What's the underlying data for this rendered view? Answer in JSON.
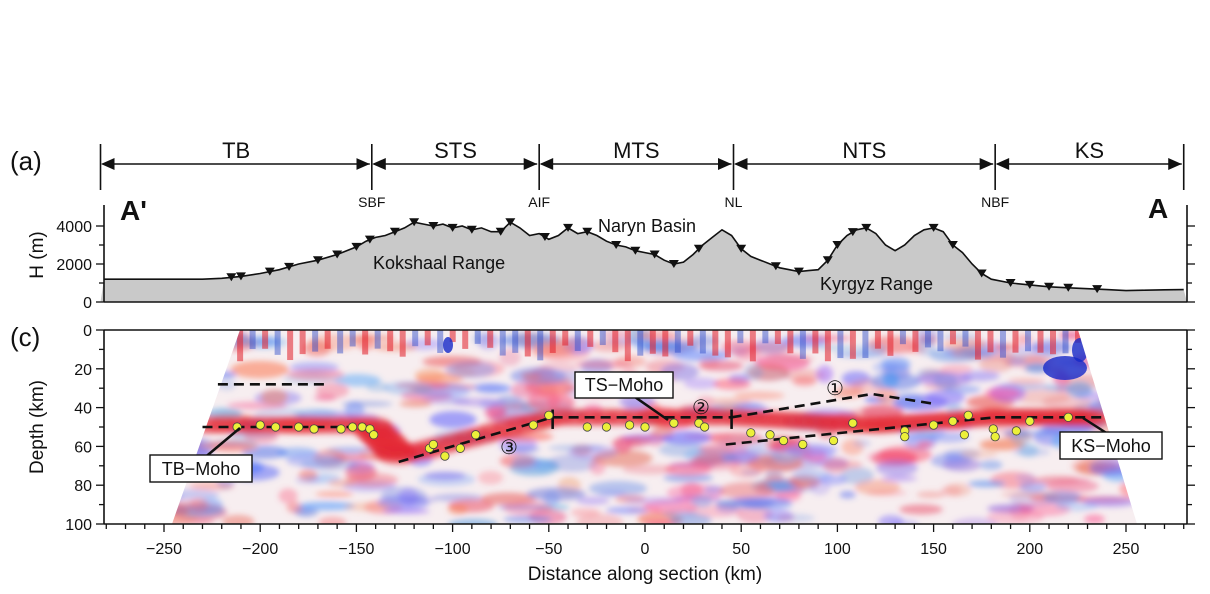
{
  "panel_a": {
    "label": "(a)",
    "section_start": "A'",
    "section_end": "A",
    "domains": [
      {
        "name": "TB",
        "from": -283,
        "to": -142
      },
      {
        "name": "STS",
        "from": -142,
        "to": -55
      },
      {
        "name": "MTS",
        "from": -55,
        "to": 46
      },
      {
        "name": "NTS",
        "from": 46,
        "to": 182
      },
      {
        "name": "KS",
        "from": 182,
        "to": 280
      }
    ],
    "faults": [
      {
        "name": "SBF",
        "x": -142
      },
      {
        "name": "AIF",
        "x": -55
      },
      {
        "name": "NL",
        "x": 46
      },
      {
        "name": "NBF",
        "x": 182
      }
    ],
    "y_axis_label": "H (m)",
    "y_ticks": [
      "0",
      "2000",
      "4000"
    ],
    "annotations": [
      {
        "text": "Kokshaal Range",
        "x": -130,
        "h": 1900
      },
      {
        "text": "Naryn Basin",
        "x": 0,
        "h": 3900
      },
      {
        "text": "Kyrgyz Range",
        "x": 140,
        "h": 900
      }
    ]
  },
  "panel_c": {
    "label": "(c)",
    "y_axis_label": "Depth (km)",
    "y_ticks": [
      "0",
      "20",
      "40",
      "60",
      "80",
      "100"
    ],
    "x_axis_label": "Distance along section (km)",
    "x_ticks": [
      "−250",
      "−200",
      "−150",
      "−100",
      "−50",
      "0",
      "50",
      "100",
      "150",
      "200",
      "250"
    ],
    "boxes": [
      "TB−Moho",
      "TS−Moho",
      "KS−Moho"
    ],
    "circled_numbers": [
      "①",
      "②",
      "③"
    ]
  },
  "chart_data": {
    "type": "line",
    "title": "",
    "xlabel": "Distance along section (km)",
    "xlim": [
      -283,
      280
    ],
    "topography": {
      "ylabel": "H (m)",
      "ylim": [
        0,
        5000
      ],
      "x": [
        -283,
        -240,
        -230,
        -220,
        -210,
        -200,
        -190,
        -180,
        -170,
        -160,
        -150,
        -145,
        -140,
        -135,
        -130,
        -125,
        -120,
        -115,
        -110,
        -105,
        -100,
        -95,
        -90,
        -85,
        -80,
        -75,
        -70,
        -65,
        -60,
        -55,
        -50,
        -45,
        -40,
        -35,
        -30,
        -25,
        -20,
        -15,
        -10,
        -5,
        0,
        5,
        10,
        15,
        20,
        25,
        30,
        35,
        40,
        45,
        50,
        55,
        60,
        65,
        70,
        75,
        80,
        85,
        90,
        95,
        100,
        105,
        110,
        115,
        120,
        125,
        130,
        135,
        140,
        145,
        150,
        155,
        160,
        165,
        170,
        175,
        180,
        190,
        200,
        210,
        220,
        230,
        240,
        250,
        260,
        270,
        280
      ],
      "h": [
        1200,
        1200,
        1200,
        1250,
        1350,
        1500,
        1700,
        2000,
        2200,
        2500,
        2900,
        3200,
        3400,
        3500,
        3700,
        3900,
        4200,
        4100,
        4000,
        4100,
        3900,
        4000,
        3800,
        3900,
        3700,
        3700,
        4200,
        3900,
        3500,
        3600,
        3300,
        3500,
        3900,
        3600,
        3700,
        3500,
        3200,
        3000,
        2900,
        2700,
        2600,
        2500,
        2200,
        2000,
        2100,
        2500,
        3000,
        3400,
        3800,
        3500,
        2800,
        2400,
        2200,
        2000,
        1800,
        1700,
        1600,
        1650,
        1700,
        2200,
        3000,
        3500,
        3800,
        3900,
        3600,
        3000,
        2700,
        3000,
        3500,
        3800,
        3900,
        3700,
        3000,
        2600,
        2000,
        1500,
        1200,
        1000,
        900,
        800,
        750,
        700,
        650,
        600,
        620,
        640,
        650
      ]
    },
    "stations_topography_x": [
      -215,
      -210,
      -195,
      -185,
      -170,
      -160,
      -150,
      -143,
      -130,
      -120,
      -110,
      -100,
      -90,
      -75,
      -70,
      -52,
      -40,
      -30,
      -15,
      -5,
      5,
      15,
      28,
      50,
      68,
      80,
      95,
      100,
      108,
      115,
      150,
      160,
      175,
      190,
      200,
      210,
      220,
      235
    ],
    "receiver_function_image": {
      "ylabel": "Depth (km)",
      "ylim": [
        100,
        0
      ],
      "moho_segments": [
        {
          "name": "TB-Moho",
          "x": [
            -230,
            -143
          ],
          "depth": [
            50,
            50
          ]
        },
        {
          "name": "TB-upper",
          "x": [
            -222,
            -165
          ],
          "depth": [
            28,
            28
          ]
        },
        {
          "name": "TS-Moho west (3)",
          "x": [
            -128,
            -48
          ],
          "depth": [
            68,
            45
          ]
        },
        {
          "name": "TS-Moho",
          "x": [
            -48,
            45
          ],
          "depth": [
            45,
            45
          ]
        },
        {
          "name": "NTS upper (1)",
          "x": [
            45,
            118,
            150
          ],
          "depth": [
            45,
            33,
            38
          ]
        },
        {
          "name": "NTS lower",
          "x": [
            42,
            182
          ],
          "depth": [
            59,
            45
          ]
        },
        {
          "name": "KS-Moho",
          "x": [
            182,
            238
          ],
          "depth": [
            45,
            45
          ]
        }
      ],
      "moho_picks": [
        {
          "x": -212,
          "d": 50
        },
        {
          "x": -200,
          "d": 49
        },
        {
          "x": -192,
          "d": 50
        },
        {
          "x": -180,
          "d": 50
        },
        {
          "x": -172,
          "d": 51
        },
        {
          "x": -158,
          "d": 51
        },
        {
          "x": -152,
          "d": 50
        },
        {
          "x": -147,
          "d": 50
        },
        {
          "x": -143,
          "d": 51
        },
        {
          "x": -141,
          "d": 54
        },
        {
          "x": -112,
          "d": 61
        },
        {
          "x": -110,
          "d": 59
        },
        {
          "x": -104,
          "d": 65
        },
        {
          "x": -96,
          "d": 61
        },
        {
          "x": -88,
          "d": 54
        },
        {
          "x": -58,
          "d": 49
        },
        {
          "x": -50,
          "d": 44
        },
        {
          "x": -30,
          "d": 50
        },
        {
          "x": -20,
          "d": 50
        },
        {
          "x": -8,
          "d": 49
        },
        {
          "x": 0,
          "d": 50
        },
        {
          "x": 15,
          "d": 48
        },
        {
          "x": 28,
          "d": 48
        },
        {
          "x": 31,
          "d": 50
        },
        {
          "x": 55,
          "d": 53
        },
        {
          "x": 65,
          "d": 54
        },
        {
          "x": 72,
          "d": 57
        },
        {
          "x": 82,
          "d": 59
        },
        {
          "x": 98,
          "d": 57
        },
        {
          "x": 108,
          "d": 48
        },
        {
          "x": 135,
          "d": 52
        },
        {
          "x": 135,
          "d": 55
        },
        {
          "x": 150,
          "d": 49
        },
        {
          "x": 160,
          "d": 47
        },
        {
          "x": 168,
          "d": 44
        },
        {
          "x": 166,
          "d": 54
        },
        {
          "x": 181,
          "d": 51
        },
        {
          "x": 182,
          "d": 55
        },
        {
          "x": 193,
          "d": 52
        },
        {
          "x": 200,
          "d": 47
        },
        {
          "x": 220,
          "d": 45
        }
      ]
    }
  }
}
